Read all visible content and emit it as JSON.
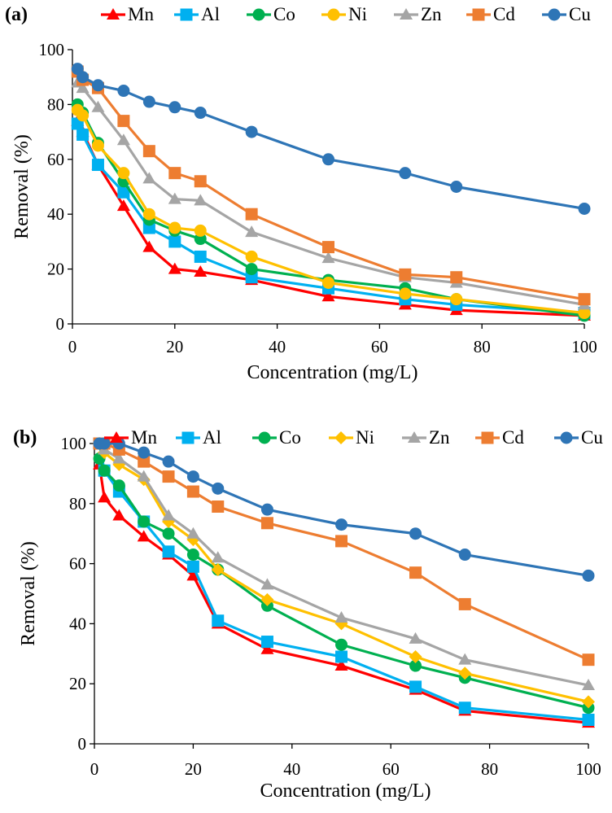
{
  "chart_data": [
    {
      "type": "line",
      "panel_label": "(a)",
      "xlabel": "Concentration  (mg/L)",
      "ylabel": "Removal  (%)",
      "xlim": [
        0,
        100
      ],
      "ylim": [
        0,
        100
      ],
      "xticks": [
        "0",
        "20",
        "40",
        "60",
        "80",
        "100"
      ],
      "yticks": [
        "0",
        "20",
        "40",
        "60",
        "80",
        "100"
      ],
      "legend_position": "top",
      "x": [
        1,
        2,
        5,
        10,
        15,
        20,
        25,
        35,
        50,
        65,
        75,
        100
      ],
      "series": [
        {
          "name": "Mn",
          "color": "#ff0000",
          "marker": "triangle",
          "values": [
            74,
            70,
            58,
            43,
            28,
            20,
            19,
            16,
            10,
            7,
            5,
            3
          ]
        },
        {
          "name": "Al",
          "color": "#00b0f0",
          "marker": "square",
          "values": [
            73,
            69,
            58,
            48,
            35,
            30,
            24.5,
            17,
            13,
            9,
            7,
            4
          ]
        },
        {
          "name": "Co",
          "color": "#00b050",
          "marker": "circle",
          "values": [
            80,
            77,
            66,
            52,
            38,
            34,
            31,
            20,
            16,
            13,
            9,
            3
          ]
        },
        {
          "name": "Ni",
          "color": "#ffc000",
          "marker": "circle",
          "values": [
            78,
            76,
            65,
            55,
            40,
            35,
            34,
            24.5,
            15,
            11,
            9,
            4
          ]
        },
        {
          "name": "Zn",
          "color": "#a5a5a5",
          "marker": "triangle",
          "values": [
            88,
            86,
            79,
            67,
            53,
            45.5,
            45,
            33.5,
            24,
            17,
            15,
            7
          ]
        },
        {
          "name": "Cd",
          "color": "#ed7d31",
          "marker": "square",
          "values": [
            92,
            89,
            86,
            74,
            63,
            55,
            52,
            40,
            28,
            18,
            17,
            9
          ]
        },
        {
          "name": "Cu",
          "color": "#2e75b6",
          "marker": "circle",
          "values": [
            93,
            90,
            87,
            85,
            81,
            79,
            77,
            70,
            60,
            55,
            50,
            42
          ]
        }
      ]
    },
    {
      "type": "line",
      "panel_label": "(b)",
      "xlabel": "Concentration  (mg/L)",
      "ylabel": "Removal  (%)",
      "xlim": [
        0,
        100
      ],
      "ylim": [
        0,
        100
      ],
      "xticks": [
        "0",
        "20",
        "40",
        "60",
        "80",
        "100"
      ],
      "yticks": [
        "0",
        "20",
        "40",
        "60",
        "80",
        "100"
      ],
      "legend_position": "top",
      "x": [
        1,
        2,
        5,
        10,
        15,
        20,
        25,
        35,
        50,
        65,
        75,
        100
      ],
      "series": [
        {
          "name": "Mn",
          "color": "#ff0000",
          "marker": "triangle",
          "values": [
            93,
            82,
            76,
            69,
            63,
            56,
            40,
            31.5,
            26,
            18,
            11,
            7
          ]
        },
        {
          "name": "Al",
          "color": "#00b0f0",
          "marker": "square",
          "values": [
            100,
            91,
            84,
            74,
            64,
            59,
            41,
            34,
            29,
            19,
            12,
            8
          ]
        },
        {
          "name": "Co",
          "color": "#00b050",
          "marker": "circle",
          "values": [
            95,
            91,
            86,
            74,
            70,
            63,
            58,
            46,
            33,
            26,
            22,
            12
          ]
        },
        {
          "name": "Ni",
          "color": "#ffc000",
          "marker": "diamond",
          "values": [
            100,
            97,
            93,
            88,
            74,
            68,
            58,
            48,
            40,
            29,
            23.5,
            14
          ]
        },
        {
          "name": "Zn",
          "color": "#a5a5a5",
          "marker": "triangle",
          "values": [
            100,
            98,
            95,
            89,
            76,
            70,
            62,
            53,
            42,
            35,
            28,
            19.5
          ]
        },
        {
          "name": "Cd",
          "color": "#ed7d31",
          "marker": "square",
          "values": [
            100,
            100,
            98,
            94,
            89,
            84,
            79,
            73.5,
            67.5,
            57,
            46.5,
            28
          ]
        },
        {
          "name": "Cu",
          "color": "#2e75b6",
          "marker": "circle",
          "values": [
            100,
            100,
            100,
            97,
            94,
            89,
            85,
            78,
            73,
            70,
            63,
            56
          ]
        }
      ]
    }
  ]
}
